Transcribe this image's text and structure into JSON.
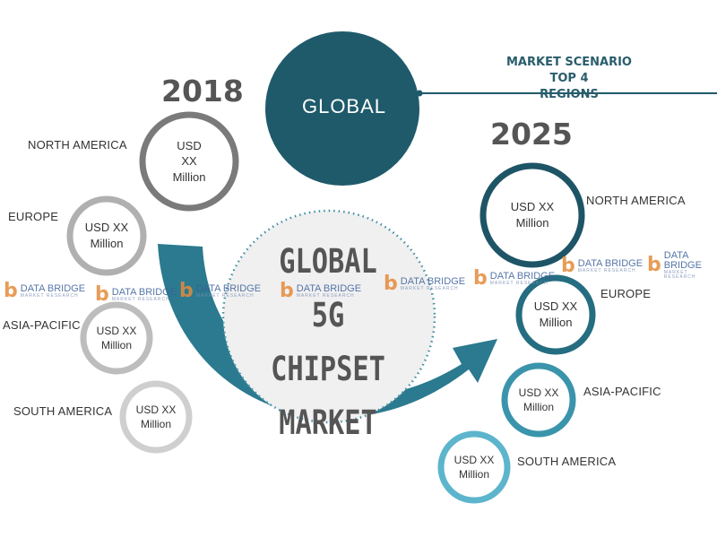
{
  "header": {
    "global_label": "GLOBAL",
    "scenario_line1": "MARKET SCENARIO TOP 4",
    "scenario_line2": "REGIONS"
  },
  "center": {
    "line1": "GLOBAL",
    "line2": "5G CHIPSET",
    "line3": "MARKET"
  },
  "year_2018": {
    "label": "2018",
    "regions": [
      {
        "name": "NORTH AMERICA",
        "value": "USD\nXX\nMillion"
      },
      {
        "name": "EUROPE",
        "value": "USD XX\nMillion"
      },
      {
        "name": "ASIA-PACIFIC",
        "value": "USD XX\nMillion"
      },
      {
        "name": "SOUTH AMERICA",
        "value": "USD XX\nMillion"
      }
    ]
  },
  "year_2025": {
    "label": "2025",
    "regions": [
      {
        "name": "NORTH AMERICA",
        "value": "USD XX\nMillion"
      },
      {
        "name": "EUROPE",
        "value": "USD XX\nMillion"
      },
      {
        "name": "ASIA-PACIFIC",
        "value": "USD XX\nMillion"
      },
      {
        "name": "SOUTH AMERICA",
        "value": "USD XX\nMillion"
      }
    ]
  },
  "watermark": {
    "logo_letter": "b",
    "brand": "DATA BRIDGE",
    "tagline": "MARKET RESEARCH"
  },
  "colors": {
    "global_circle": "#1f5a6b",
    "arrow": "#2b7a8f",
    "na_2025": "#1e5566",
    "eu_2025": "#256d80",
    "ap_2025": "#3a94ab",
    "sa_2025": "#5cb5cc",
    "gray_dark": "#7a7a7a",
    "gray_light": "#bdbdbd"
  }
}
